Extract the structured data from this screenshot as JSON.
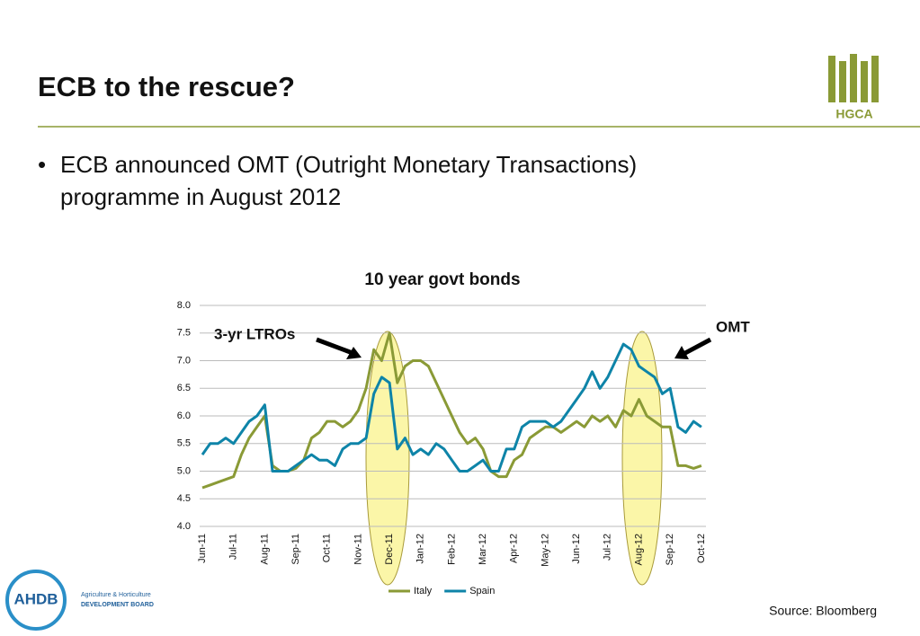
{
  "slide": {
    "title": "ECB to the rescue?",
    "bullet": [
      "ECB announced OMT (Outright Monetary Transactions)",
      "programme in August 2012"
    ],
    "source": "Source: Bloomberg",
    "logo_top": "HGCA",
    "logo_bottom": {
      "name": "AHDB",
      "line1": "Agriculture & Horticulture",
      "line2": "DEVELOPMENT BOARD"
    }
  },
  "chart_data": {
    "type": "line",
    "title": "10 year govt bonds",
    "annotations": [
      "3-yr LTROs",
      "OMT"
    ],
    "categories": [
      "Jun-11",
      null,
      null,
      null,
      "Jul-11",
      null,
      null,
      null,
      "Aug-11",
      null,
      null,
      null,
      "Sep-11",
      null,
      null,
      null,
      "Oct-11",
      null,
      null,
      null,
      "Nov-11",
      null,
      null,
      null,
      "Dec-11",
      null,
      null,
      null,
      "Jan-12",
      null,
      null,
      null,
      "Feb-12",
      null,
      null,
      null,
      "Mar-12",
      null,
      null,
      null,
      "Apr-12",
      null,
      null,
      null,
      "May-12",
      null,
      null,
      null,
      "Jun-12",
      null,
      null,
      null,
      "Jul-12",
      null,
      null,
      null,
      "Aug-12",
      null,
      null,
      null,
      "Sep-12",
      null,
      null,
      null,
      "Oct-12"
    ],
    "series": [
      {
        "name": "Italy",
        "color": "#8a9a36",
        "values": [
          4.7,
          4.75,
          4.8,
          4.85,
          4.9,
          5.3,
          5.6,
          5.8,
          6.0,
          5.1,
          5.0,
          5.0,
          5.05,
          5.2,
          5.6,
          5.7,
          5.9,
          5.9,
          5.8,
          5.9,
          6.1,
          6.5,
          7.2,
          7.0,
          7.5,
          6.6,
          6.9,
          7.0,
          7.0,
          6.9,
          6.6,
          6.3,
          6.0,
          5.7,
          5.5,
          5.6,
          5.4,
          5.0,
          4.9,
          4.9,
          5.2,
          5.3,
          5.6,
          5.7,
          5.8,
          5.8,
          5.7,
          5.8,
          5.9,
          5.8,
          6.0,
          5.9,
          6.0,
          5.8,
          6.1,
          6.0,
          6.3,
          6.0,
          5.9,
          5.8,
          5.8,
          5.1,
          5.1,
          5.05,
          5.1
        ]
      },
      {
        "name": "Spain",
        "color": "#0e84a8",
        "values": [
          5.3,
          5.5,
          5.5,
          5.6,
          5.5,
          5.7,
          5.9,
          6.0,
          6.2,
          5.0,
          5.0,
          5.0,
          5.1,
          5.2,
          5.3,
          5.2,
          5.2,
          5.1,
          5.4,
          5.5,
          5.5,
          5.6,
          6.4,
          6.7,
          6.6,
          5.4,
          5.6,
          5.3,
          5.4,
          5.3,
          5.5,
          5.4,
          5.2,
          5.0,
          5.0,
          5.1,
          5.2,
          5.0,
          5.0,
          5.4,
          5.4,
          5.8,
          5.9,
          5.9,
          5.9,
          5.8,
          5.9,
          6.1,
          6.3,
          6.5,
          6.8,
          6.5,
          6.7,
          7.0,
          7.3,
          7.2,
          6.9,
          6.8,
          6.7,
          6.4,
          6.5,
          5.8,
          5.7,
          5.9,
          5.8
        ]
      }
    ],
    "ylim": [
      4.0,
      8.0
    ],
    "yticks": [
      {
        "value": 4.0,
        "label": "4.0"
      },
      {
        "value": 4.5,
        "label": "4.5"
      },
      {
        "value": 5.0,
        "label": "5.0"
      },
      {
        "value": 5.5,
        "label": "5.5"
      },
      {
        "value": 6.0,
        "label": "6.0"
      },
      {
        "value": 6.5,
        "label": "6.5"
      },
      {
        "value": 7.0,
        "label": "7.0"
      },
      {
        "value": 7.5,
        "label": "7.5"
      },
      {
        "value": 8.0,
        "label": "8.0"
      }
    ],
    "grid": true,
    "legend": "bottom"
  }
}
